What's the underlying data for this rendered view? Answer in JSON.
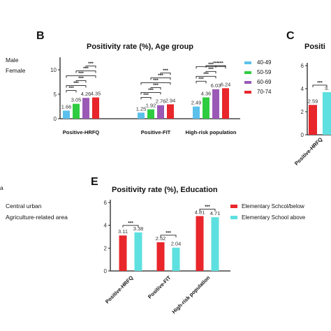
{
  "stray_labels": [
    "Male",
    "Female",
    "a",
    "Central urban",
    "Agriculture-related area"
  ],
  "chart_data": [
    {
      "panel": "B",
      "type": "bar",
      "title": "Positivity rate (%), Age group",
      "categories": [
        "Positive-HRFQ",
        "Positive-FIT",
        "High-risk population"
      ],
      "series": [
        {
          "name": "40-49",
          "color": "#5bc0eb",
          "values": [
            1.66,
            1.25,
            2.49
          ]
        },
        {
          "name": "50-59",
          "color": "#2ecc40",
          "values": [
            3.05,
            1.92,
            4.36
          ]
        },
        {
          "name": "60-69",
          "color": "#9b59b6",
          "values": [
            4.26,
            2.76,
            6.03
          ]
        },
        {
          "name": "70-74",
          "color": "#e8262b",
          "values": [
            4.35,
            2.94,
            6.24
          ]
        }
      ],
      "value_labels": [
        [
          "1.66",
          "3.05",
          "4.26",
          "4.35"
        ],
        [
          "1.25",
          "1.92",
          "2.76",
          "2.94"
        ],
        [
          "2.49",
          "4.36",
          "6.03",
          "6.24"
        ]
      ],
      "ylim": [
        0,
        12
      ],
      "yticks": [
        0,
        5,
        10
      ],
      "significance": "***"
    },
    {
      "panel": "C",
      "type": "bar",
      "title": "Positi",
      "categories": [
        "Positive-HRFQ"
      ],
      "series": [
        {
          "name": "",
          "color": "#e8262b",
          "values": [
            2.59
          ]
        },
        {
          "name": "",
          "color": "#5ee0e0",
          "values": [
            3.7
          ]
        }
      ],
      "value_labels": [
        [
          "2.59",
          "3."
        ]
      ],
      "ylim": [
        0,
        6
      ],
      "yticks": [
        0,
        2,
        4,
        6
      ],
      "significance": "***"
    },
    {
      "panel": "E",
      "type": "bar",
      "title": "Positivity rate (%), Education",
      "categories": [
        "Positive-HRFQ",
        "Positive-FIT",
        "High-risk population"
      ],
      "series": [
        {
          "name": "Elementary Schcol/below",
          "color": "#e8262b",
          "values": [
            3.11,
            2.52,
            4.81
          ]
        },
        {
          "name": "Elementary School above",
          "color": "#5ee0e0",
          "values": [
            3.38,
            2.04,
            4.71
          ]
        }
      ],
      "value_labels": [
        [
          "3.11",
          "3.38"
        ],
        [
          "2.52",
          "2.04"
        ],
        [
          "4.81",
          "4.71"
        ]
      ],
      "ylim": [
        0,
        6
      ],
      "yticks": [
        0,
        2,
        4,
        6
      ],
      "significance": "***"
    }
  ]
}
